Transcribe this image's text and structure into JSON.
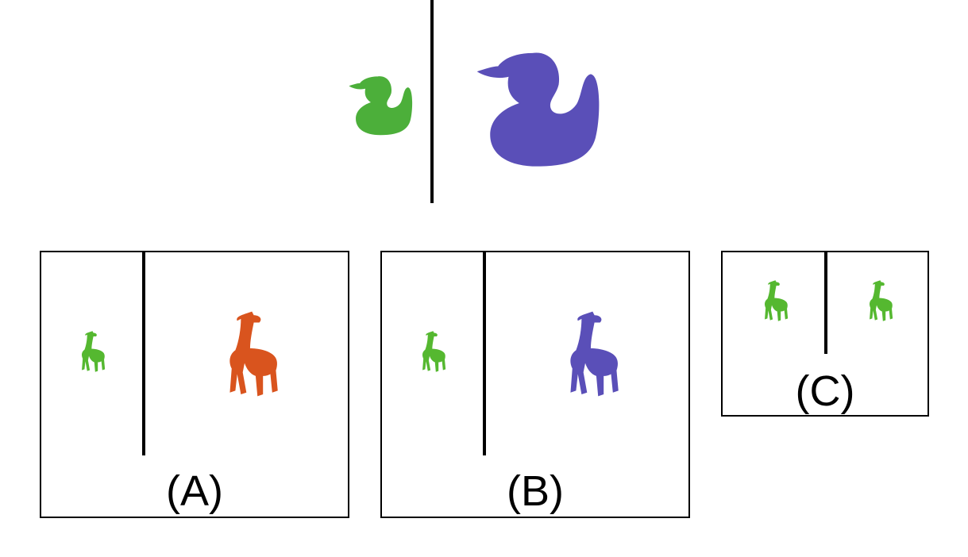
{
  "puzzle": {
    "prompt": {
      "left_item": {
        "shape": "duck-icon",
        "color": "#4caf3a",
        "size": "small"
      },
      "right_item": {
        "shape": "duck-icon",
        "color": "#5a4fb8",
        "size": "large"
      }
    },
    "options": [
      {
        "label": "(A)",
        "left_item": {
          "shape": "giraffe-icon",
          "color": "#55b830",
          "size": "small"
        },
        "right_item": {
          "shape": "giraffe-icon",
          "color": "#d9541e",
          "size": "large"
        }
      },
      {
        "label": "(B)",
        "left_item": {
          "shape": "giraffe-icon",
          "color": "#55b830",
          "size": "small"
        },
        "right_item": {
          "shape": "giraffe-icon",
          "color": "#5a4fb8",
          "size": "large"
        }
      },
      {
        "label": "(C)",
        "left_item": {
          "shape": "giraffe-icon",
          "color": "#55b830",
          "size": "small"
        },
        "right_item": {
          "shape": "giraffe-icon",
          "color": "#55b830",
          "size": "small"
        }
      }
    ]
  }
}
